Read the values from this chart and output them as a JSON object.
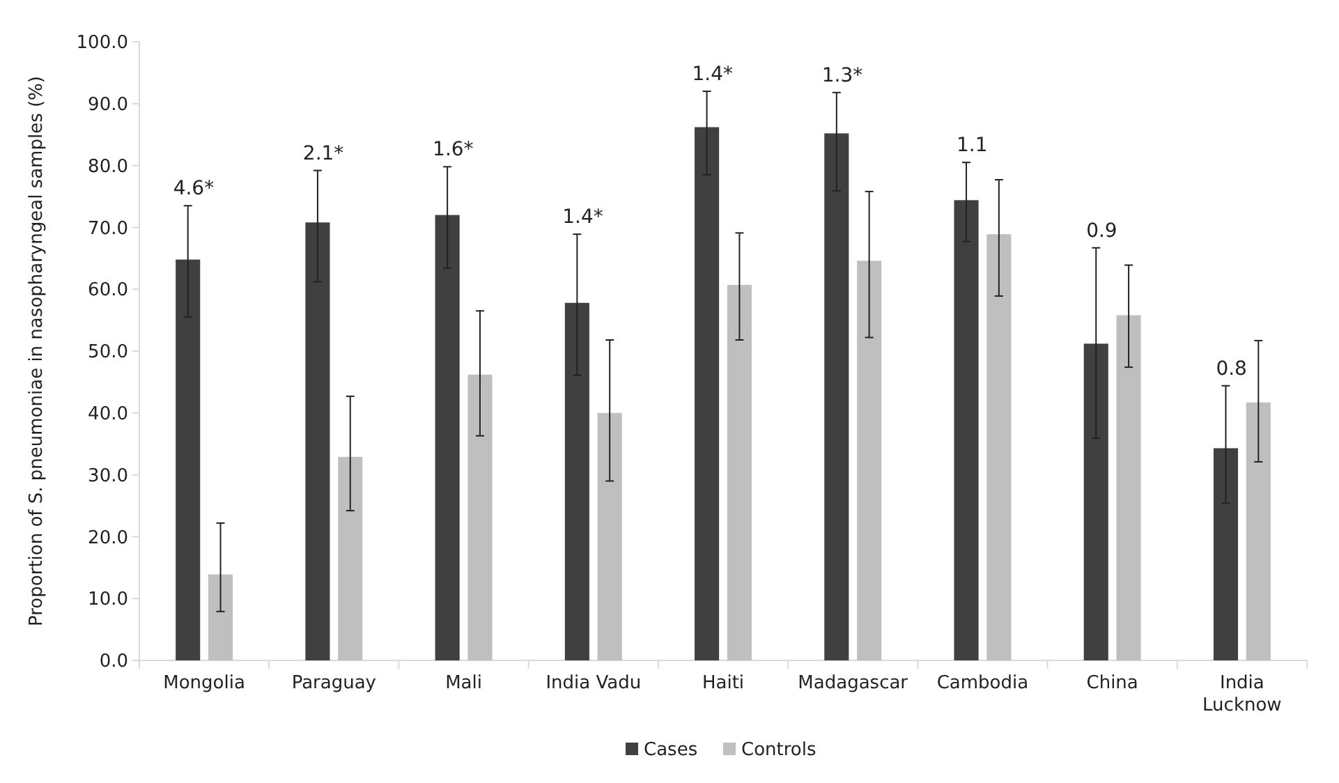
{
  "chart_data": {
    "type": "bar",
    "ylabel": "Proportion of S. pneumoniae in nasopharyngeal samples (%)",
    "categories": [
      "Mongolia",
      "Paraguay",
      "Mali",
      "India Vadu",
      "Haiti",
      "Madagascar",
      "Cambodia",
      "China",
      "India Lucknow"
    ],
    "series": [
      {
        "name": "Cases",
        "color": "#404040",
        "values": [
          64.8,
          70.8,
          72.0,
          57.8,
          86.2,
          85.2,
          74.4,
          51.2,
          34.3
        ],
        "errors": [
          [
            55.5,
            73.5
          ],
          [
            61.2,
            79.2
          ],
          [
            63.4,
            79.8
          ],
          [
            46.1,
            68.9
          ],
          [
            78.5,
            92.0
          ],
          [
            75.9,
            91.8
          ],
          [
            67.7,
            80.5
          ],
          [
            35.9,
            66.7
          ],
          [
            25.4,
            44.4
          ]
        ]
      },
      {
        "name": "Controls",
        "color": "#bfbfbf",
        "values": [
          13.9,
          32.9,
          46.2,
          40.0,
          60.7,
          64.6,
          68.9,
          55.8,
          41.7
        ],
        "errors": [
          [
            7.9,
            22.2
          ],
          [
            24.2,
            42.7
          ],
          [
            36.3,
            56.5
          ],
          [
            29.0,
            51.8
          ],
          [
            51.8,
            69.1
          ],
          [
            52.2,
            75.8
          ],
          [
            58.9,
            77.7
          ],
          [
            47.4,
            63.9
          ],
          [
            32.1,
            51.7
          ]
        ]
      }
    ],
    "ylim": [
      0,
      100
    ],
    "yticks": [
      {
        "value": 0,
        "label": "0.0"
      },
      {
        "value": 10,
        "label": "10.0"
      },
      {
        "value": 20,
        "label": "20.0"
      },
      {
        "value": 30,
        "label": "30.0"
      },
      {
        "value": 40,
        "label": "40.0"
      },
      {
        "value": 50,
        "label": "50.0"
      },
      {
        "value": 60,
        "label": "60.0"
      },
      {
        "value": 70,
        "label": "70.0"
      },
      {
        "value": 80,
        "label": "80.0"
      },
      {
        "value": 90,
        "label": "90.0"
      },
      {
        "value": 100,
        "label": "100.0"
      }
    ],
    "annotations": [
      "4.6*",
      "2.1*",
      "1.6*",
      "1.4*",
      "1.4*",
      "1.3*",
      "1.1",
      "0.9",
      "0.8"
    ],
    "grid": false,
    "legend": "bottom"
  }
}
